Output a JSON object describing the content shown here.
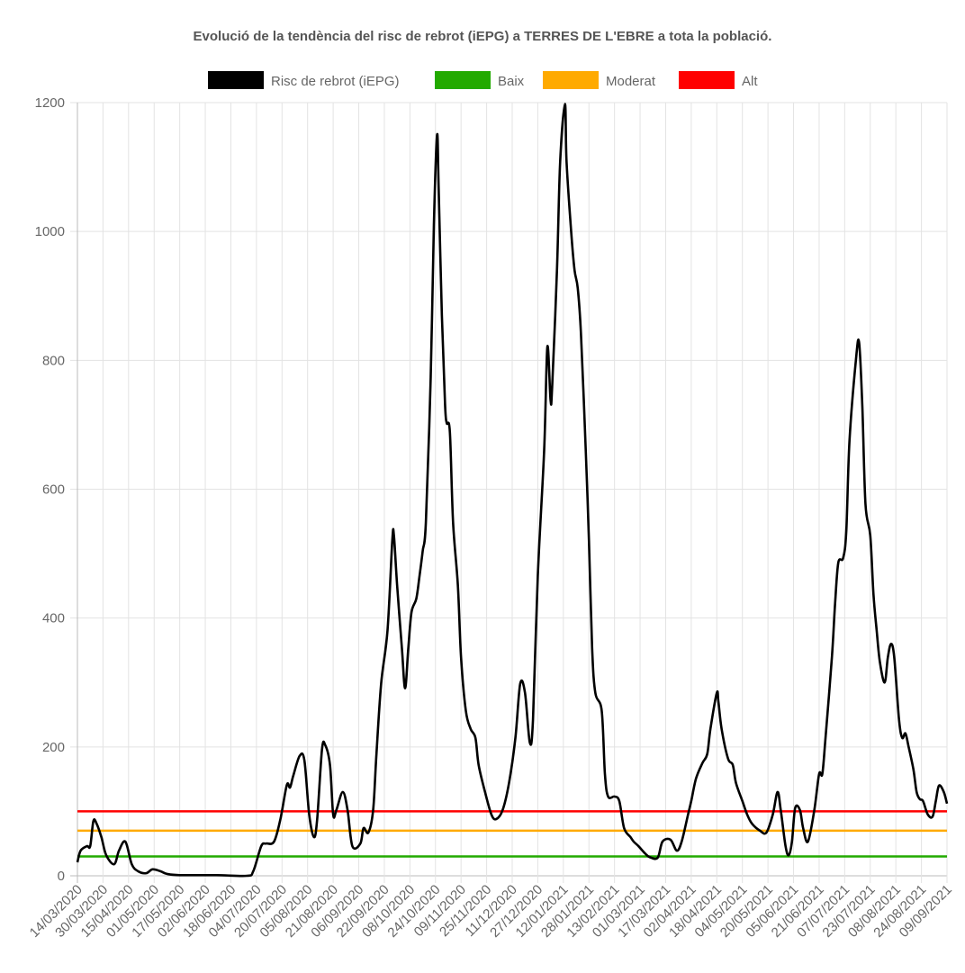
{
  "chart_data": {
    "type": "line",
    "title": "Evolució de la tendència del risc de rebrot (iEPG) a TERRES DE L'EBRE a tota la població.",
    "xlabel": "",
    "ylabel": "",
    "ylim": [
      0,
      1200
    ],
    "yticks": [
      0,
      200,
      400,
      600,
      800,
      1000,
      1200
    ],
    "grid": true,
    "legend_placement": "top",
    "x_tick_labels": [
      "14/03/2020",
      "30/03/2020",
      "15/04/2020",
      "01/05/2020",
      "17/05/2020",
      "02/06/2020",
      "18/06/2020",
      "04/07/2020",
      "20/07/2020",
      "05/08/2020",
      "21/08/2020",
      "06/09/2020",
      "22/09/2020",
      "08/10/2020",
      "24/10/2020",
      "09/11/2020",
      "25/11/2020",
      "11/12/2020",
      "27/12/2020",
      "12/01/2021",
      "28/01/2021",
      "13/02/2021",
      "01/03/2021",
      "17/03/2021",
      "02/04/2021",
      "18/04/2021",
      "04/05/2021",
      "20/05/2021",
      "05/06/2021",
      "21/06/2021",
      "07/07/2021",
      "23/07/2021",
      "08/08/2021",
      "24/08/2021",
      "09/09/2021"
    ],
    "x_tick_interval_days": 16,
    "x_range_days": [
      0,
      544
    ],
    "series": [
      {
        "name": "Risc de rebrot (iEPG)",
        "color": "#000000",
        "points_day_value": [
          [
            0,
            21
          ],
          [
            2,
            39
          ],
          [
            6,
            46
          ],
          [
            8,
            46
          ],
          [
            10,
            85
          ],
          [
            12,
            81
          ],
          [
            15,
            60
          ],
          [
            18,
            32
          ],
          [
            23,
            18
          ],
          [
            26,
            39
          ],
          [
            30,
            53
          ],
          [
            34,
            18
          ],
          [
            38,
            7
          ],
          [
            43,
            4
          ],
          [
            47,
            10
          ],
          [
            52,
            7
          ],
          [
            56,
            3
          ],
          [
            64,
            1
          ],
          [
            87,
            1
          ],
          [
            106,
            0
          ],
          [
            110,
            7
          ],
          [
            115,
            46
          ],
          [
            118,
            50
          ],
          [
            123,
            53
          ],
          [
            127,
            88
          ],
          [
            131,
            141
          ],
          [
            133,
            137
          ],
          [
            135,
            155
          ],
          [
            139,
            186
          ],
          [
            142,
            179
          ],
          [
            145,
            95
          ],
          [
            148,
            60
          ],
          [
            150,
            88
          ],
          [
            153,
            196
          ],
          [
            155,
            203
          ],
          [
            158,
            172
          ],
          [
            160,
            95
          ],
          [
            162,
            102
          ],
          [
            166,
            130
          ],
          [
            169,
            102
          ],
          [
            172,
            46
          ],
          [
            177,
            50
          ],
          [
            179,
            74
          ],
          [
            182,
            67
          ],
          [
            185,
            102
          ],
          [
            187,
            186
          ],
          [
            190,
            298
          ],
          [
            194,
            381
          ],
          [
            197,
            521
          ],
          [
            198,
            528
          ],
          [
            200,
            451
          ],
          [
            203,
            353
          ],
          [
            205,
            291
          ],
          [
            207,
            353
          ],
          [
            209,
            409
          ],
          [
            212,
            430
          ],
          [
            214,
            465
          ],
          [
            216,
            504
          ],
          [
            218,
            549
          ],
          [
            221,
            773
          ],
          [
            223,
            1010
          ],
          [
            225,
            1150
          ],
          [
            226,
            1066
          ],
          [
            228,
            870
          ],
          [
            230,
            731
          ],
          [
            231,
            703
          ],
          [
            233,
            689
          ],
          [
            235,
            549
          ],
          [
            238,
            451
          ],
          [
            240,
            339
          ],
          [
            243,
            256
          ],
          [
            246,
            228
          ],
          [
            249,
            214
          ],
          [
            251,
            172
          ],
          [
            255,
            130
          ],
          [
            259,
            95
          ],
          [
            262,
            88
          ],
          [
            266,
            102
          ],
          [
            270,
            144
          ],
          [
            274,
            214
          ],
          [
            277,
            298
          ],
          [
            280,
            284
          ],
          [
            283,
            207
          ],
          [
            285,
            242
          ],
          [
            288,
            465
          ],
          [
            292,
            661
          ],
          [
            294,
            821
          ],
          [
            296,
            738
          ],
          [
            297,
            759
          ],
          [
            300,
            940
          ],
          [
            302,
            1108
          ],
          [
            305,
            1198
          ],
          [
            306,
            1108
          ],
          [
            309,
            996
          ],
          [
            311,
            940
          ],
          [
            313,
            912
          ],
          [
            315,
            842
          ],
          [
            318,
            661
          ],
          [
            320,
            521
          ],
          [
            322,
            353
          ],
          [
            324,
            284
          ],
          [
            328,
            256
          ],
          [
            330,
            158
          ],
          [
            332,
            123
          ],
          [
            336,
            123
          ],
          [
            339,
            116
          ],
          [
            342,
            74
          ],
          [
            346,
            60
          ],
          [
            348,
            53
          ],
          [
            351,
            46
          ],
          [
            355,
            35
          ],
          [
            358,
            29
          ],
          [
            363,
            28
          ],
          [
            366,
            53
          ],
          [
            371,
            56
          ],
          [
            375,
            39
          ],
          [
            378,
            53
          ],
          [
            382,
            95
          ],
          [
            384,
            116
          ],
          [
            387,
            151
          ],
          [
            391,
            175
          ],
          [
            394,
            189
          ],
          [
            396,
            228
          ],
          [
            400,
            284
          ],
          [
            401,
            270
          ],
          [
            403,
            228
          ],
          [
            407,
            182
          ],
          [
            410,
            172
          ],
          [
            412,
            144
          ],
          [
            416,
            116
          ],
          [
            419,
            95
          ],
          [
            422,
            81
          ],
          [
            427,
            70
          ],
          [
            431,
            67
          ],
          [
            435,
            95
          ],
          [
            438,
            130
          ],
          [
            440,
            102
          ],
          [
            443,
            46
          ],
          [
            445,
            32
          ],
          [
            447,
            53
          ],
          [
            449,
            105
          ],
          [
            452,
            102
          ],
          [
            454,
            74
          ],
          [
            457,
            53
          ],
          [
            461,
            102
          ],
          [
            464,
            158
          ],
          [
            466,
            158
          ],
          [
            468,
            214
          ],
          [
            472,
            339
          ],
          [
            474,
            423
          ],
          [
            476,
            486
          ],
          [
            479,
            493
          ],
          [
            481,
            535
          ],
          [
            483,
            675
          ],
          [
            487,
            800
          ],
          [
            489,
            828
          ],
          [
            491,
            731
          ],
          [
            493,
            577
          ],
          [
            496,
            528
          ],
          [
            498,
            437
          ],
          [
            500,
            381
          ],
          [
            502,
            332
          ],
          [
            505,
            300
          ],
          [
            507,
            339
          ],
          [
            509,
            360
          ],
          [
            511,
            339
          ],
          [
            514,
            242
          ],
          [
            516,
            214
          ],
          [
            518,
            221
          ],
          [
            520,
            200
          ],
          [
            523,
            165
          ],
          [
            525,
            130
          ],
          [
            527,
            119
          ],
          [
            529,
            116
          ],
          [
            532,
            95
          ],
          [
            535,
            92
          ],
          [
            537,
            116
          ],
          [
            539,
            140
          ],
          [
            542,
            130
          ],
          [
            544,
            112
          ]
        ]
      },
      {
        "name": "Baix",
        "color": "#22aa00",
        "constant": 30
      },
      {
        "name": "Moderat",
        "color": "#ffaa00",
        "constant": 70
      },
      {
        "name": "Alt",
        "color": "#ff0000",
        "constant": 100
      }
    ]
  }
}
